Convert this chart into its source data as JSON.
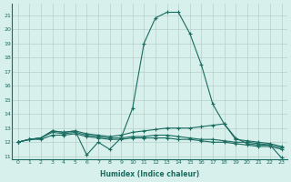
{
  "background_color": "#d7f0ec",
  "grid_color": "#b0c8c4",
  "line_color": "#1a6b60",
  "xlabel": "Humidex (Indice chaleur)",
  "xlim": [
    -0.5,
    23.5
  ],
  "ylim": [
    10.8,
    21.8
  ],
  "yticks": [
    11,
    12,
    13,
    14,
    15,
    16,
    17,
    18,
    19,
    20,
    21
  ],
  "xticks": [
    0,
    1,
    2,
    3,
    4,
    5,
    6,
    7,
    8,
    9,
    10,
    11,
    12,
    13,
    14,
    15,
    16,
    17,
    18,
    19,
    20,
    21,
    22,
    23
  ],
  "series": [
    {
      "x": [
        0,
        1,
        2,
        3,
        4,
        5,
        6,
        7,
        8,
        9,
        10,
        11,
        12,
        13,
        14,
        15,
        16,
        17,
        18,
        19,
        20,
        21,
        22,
        23
      ],
      "y": [
        12.0,
        12.2,
        12.3,
        12.8,
        12.7,
        12.8,
        11.1,
        12.0,
        11.5,
        12.3,
        14.4,
        19.0,
        20.8,
        21.2,
        21.2,
        19.7,
        17.5,
        14.7,
        13.3,
        12.3,
        11.9,
        11.8,
        11.8,
        10.9
      ]
    },
    {
      "x": [
        0,
        1,
        2,
        3,
        4,
        5,
        6,
        7,
        8,
        9,
        10,
        11,
        12,
        13,
        14,
        15,
        16,
        17,
        18,
        19,
        20,
        21,
        22,
        23
      ],
      "y": [
        12.0,
        12.2,
        12.3,
        12.8,
        12.7,
        12.8,
        12.6,
        12.5,
        12.4,
        12.5,
        12.7,
        12.8,
        12.9,
        13.0,
        13.0,
        13.0,
        13.1,
        13.2,
        13.3,
        12.2,
        12.1,
        12.0,
        11.9,
        11.7
      ]
    },
    {
      "x": [
        0,
        1,
        2,
        3,
        4,
        5,
        6,
        7,
        8,
        9,
        10,
        11,
        12,
        13,
        14,
        15,
        16,
        17,
        18,
        19,
        20,
        21,
        22,
        23
      ],
      "y": [
        12.0,
        12.2,
        12.3,
        12.7,
        12.6,
        12.7,
        12.5,
        12.4,
        12.3,
        12.3,
        12.4,
        12.4,
        12.5,
        12.5,
        12.4,
        12.3,
        12.2,
        12.2,
        12.1,
        12.0,
        12.0,
        11.9,
        11.8,
        11.6
      ]
    },
    {
      "x": [
        0,
        1,
        2,
        3,
        4,
        5,
        6,
        7,
        8,
        9,
        10,
        11,
        12,
        13,
        14,
        15,
        16,
        17,
        18,
        19,
        20,
        21,
        22,
        23
      ],
      "y": [
        12.0,
        12.2,
        12.2,
        12.5,
        12.5,
        12.6,
        12.4,
        12.3,
        12.2,
        12.2,
        12.3,
        12.3,
        12.3,
        12.3,
        12.2,
        12.2,
        12.1,
        12.0,
        12.0,
        11.9,
        11.8,
        11.7,
        11.7,
        11.5
      ]
    }
  ]
}
